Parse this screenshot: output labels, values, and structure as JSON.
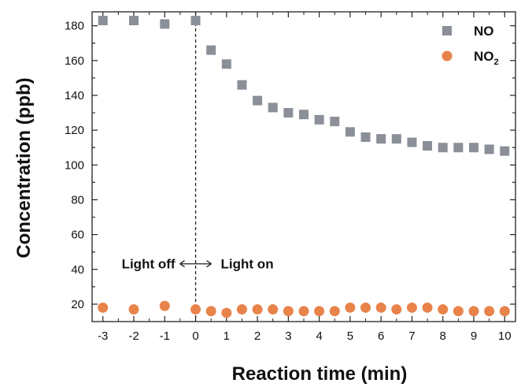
{
  "chart_data": {
    "type": "scatter",
    "xlabel": "Reaction time (min)",
    "ylabel": "Concentration (ppb)",
    "xlim": [
      -3.35,
      10.35
    ],
    "ylim": [
      10,
      188
    ],
    "xticks": [
      -3,
      -2,
      -1,
      0,
      1,
      2,
      3,
      4,
      5,
      6,
      7,
      8,
      9,
      10
    ],
    "xtick_labels": [
      "-3",
      "-2",
      "-1",
      "0",
      "1",
      "2",
      "3",
      "4",
      "5",
      "6",
      "7",
      "8",
      "9",
      "10"
    ],
    "yticks": [
      20,
      40,
      60,
      80,
      100,
      120,
      140,
      160,
      180
    ],
    "ytick_labels": [
      "20",
      "40",
      "60",
      "80",
      "100",
      "120",
      "140",
      "160",
      "180"
    ],
    "grid": false,
    "legend_position": "top-right",
    "series": [
      {
        "name": "NO",
        "marker": "square",
        "color": "#8a8f98",
        "x": [
          -3,
          -2,
          -1,
          0,
          0.5,
          1,
          1.5,
          2,
          2.5,
          3,
          3.5,
          4,
          4.5,
          5,
          5.5,
          6,
          6.5,
          7,
          7.5,
          8,
          8.5,
          9,
          9.5,
          10
        ],
        "y": [
          183,
          183,
          181,
          183,
          166,
          158,
          146,
          137,
          133,
          130,
          129,
          126,
          125,
          119,
          116,
          115,
          115,
          113,
          111,
          110,
          110,
          110,
          109,
          108
        ]
      },
      {
        "name": "NO",
        "name_subscript": "2",
        "marker": "circle",
        "color": "#e8834a",
        "x": [
          -3,
          -2,
          -1,
          0,
          0.5,
          1,
          1.5,
          2,
          2.5,
          3,
          3.5,
          4,
          4.5,
          5,
          5.5,
          6,
          6.5,
          7,
          7.5,
          8,
          8.5,
          9,
          9.5,
          10
        ],
        "y": [
          18,
          17,
          19,
          17,
          16,
          15,
          17,
          17,
          17,
          16,
          16,
          16,
          16,
          18,
          18,
          18,
          17,
          18,
          18,
          17,
          16,
          16,
          16,
          16
        ]
      }
    ],
    "annotations": {
      "divider_x": 0,
      "left_text": "Light off",
      "right_text": "Light on",
      "arrow_y": 45
    }
  }
}
